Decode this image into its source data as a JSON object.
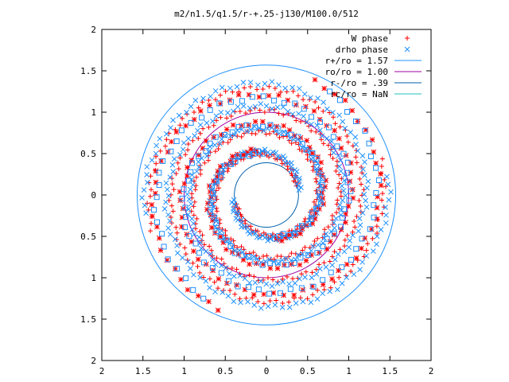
{
  "chart_data": {
    "type": "scatter",
    "title": "m2/n1.5/q1.5/r-+.25-j130/M100.0/512",
    "xlim": [
      -2,
      2
    ],
    "ylim": [
      -2,
      2
    ],
    "x_ticks": [
      {
        "v": -2,
        "label": "2"
      },
      {
        "v": -1.5,
        "label": "1.5"
      },
      {
        "v": -1,
        "label": "1"
      },
      {
        "v": -0.5,
        "label": "0.5"
      },
      {
        "v": 0,
        "label": "0"
      },
      {
        "v": 0.5,
        "label": "0.5"
      },
      {
        "v": 1,
        "label": "1"
      },
      {
        "v": 1.5,
        "label": "1.5"
      },
      {
        "v": 2,
        "label": "2"
      }
    ],
    "y_ticks": [
      {
        "v": 2,
        "label": "2"
      },
      {
        "v": 1.5,
        "label": "1.5"
      },
      {
        "v": 1,
        "label": "1"
      },
      {
        "v": 0.5,
        "label": "0.5"
      },
      {
        "v": 0,
        "label": "0"
      },
      {
        "v": -0.5,
        "label": "0.5"
      },
      {
        "v": -1,
        "label": "1"
      },
      {
        "v": -1.5,
        "label": "1.5"
      },
      {
        "v": -2,
        "label": "2"
      }
    ],
    "grid": false,
    "legend_position": "top-right",
    "series": [
      {
        "name": "W phase",
        "kind": "points",
        "marker": "plus",
        "color": "#ff0000",
        "spirals": [
          {
            "r0": 0.38,
            "r1": 1.45,
            "phase": 0.3,
            "turns": 2.0,
            "n": 220
          },
          {
            "r0": 0.38,
            "r1": 1.45,
            "phase": 3.44,
            "turns": 2.0,
            "n": 220
          }
        ]
      },
      {
        "name": "drho phase",
        "kind": "points",
        "marker": "cross",
        "color": "#1e90ff",
        "spirals": [
          {
            "r0": 0.4,
            "r1": 1.5,
            "phase": 0.15,
            "turns": 2.0,
            "n": 200
          },
          {
            "r0": 0.4,
            "r1": 1.5,
            "phase": 3.29,
            "turns": 2.0,
            "n": 200
          }
        ]
      },
      {
        "name": "",
        "kind": "points",
        "marker": "star",
        "color": "#ff0000",
        "spirals": [
          {
            "r0": 0.55,
            "r1": 1.5,
            "phase": 1.8,
            "turns": 1.4,
            "n": 90
          },
          {
            "r0": 0.55,
            "r1": 1.5,
            "phase": 4.94,
            "turns": 1.4,
            "n": 90
          }
        ]
      },
      {
        "name": "",
        "kind": "points",
        "marker": "square",
        "color": "#1e90ff",
        "spirals": [
          {
            "r0": 0.5,
            "r1": 1.45,
            "phase": 1.65,
            "turns": 1.4,
            "n": 80
          },
          {
            "r0": 0.5,
            "r1": 1.45,
            "phase": 4.79,
            "turns": 1.4,
            "n": 80
          }
        ]
      },
      {
        "name": "r+/ro = 1.57",
        "kind": "circle",
        "radius": 1.57,
        "color": "#1e90ff"
      },
      {
        "name": "ro/ro = 1.00",
        "kind": "circle",
        "radius": 1.0,
        "color": "#a000a0"
      },
      {
        "name": "r-/ro = .39",
        "kind": "circle",
        "radius": 0.39,
        "color": "#0060ad"
      },
      {
        "name": "rc/ro = NaN",
        "kind": "circle",
        "radius": null,
        "color": "#20c0c0"
      }
    ]
  }
}
